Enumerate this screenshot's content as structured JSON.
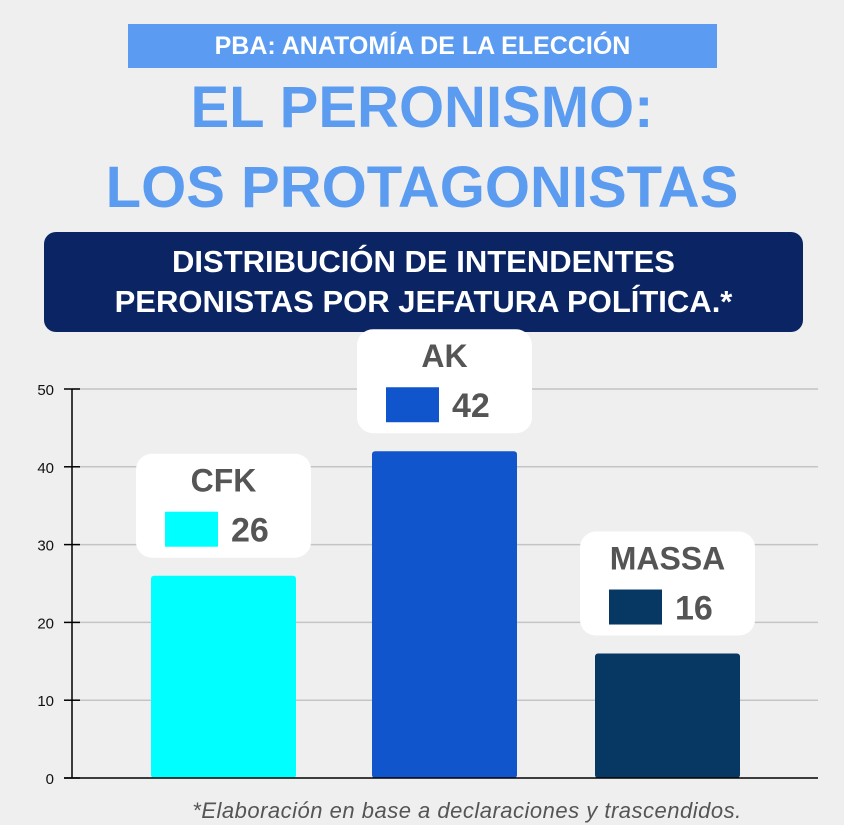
{
  "header": {
    "banner": "PBA: ANATOMÍA DE LA ELECCIÓN",
    "title_line1": "EL PERONISMO:",
    "title_line2": "LOS PROTAGONISTAS",
    "subtitle_line1": "DISTRIBUCIÓN DE INTENDENTES",
    "subtitle_line2": "PERONISTAS POR JEFATURA POLÍTICA.*"
  },
  "chart_data": {
    "type": "bar",
    "categories": [
      "CFK",
      "AK",
      "MASSA"
    ],
    "values": [
      26,
      42,
      16
    ],
    "colors": [
      "#00ffff",
      "#1155cc",
      "#073763"
    ],
    "ylim": [
      0,
      50
    ],
    "yticks": [
      "0",
      "10",
      "20",
      "30",
      "40",
      "50"
    ],
    "grid": true,
    "xlabel": "",
    "ylabel": ""
  },
  "footnote": "*Elaboración en base a declaraciones y trascendidos."
}
